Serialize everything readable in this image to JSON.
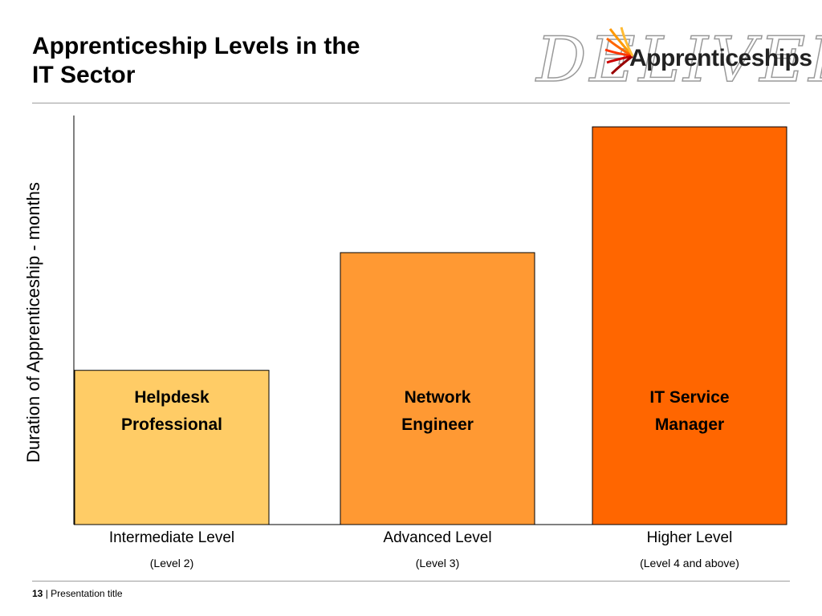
{
  "title": {
    "line1": "Apprenticeship Levels in the",
    "line2": "IT Sector"
  },
  "logo": {
    "ghost_text": "DELIVER",
    "word": "Apprenticeships"
  },
  "footer": {
    "page_number": "13",
    "separator": "|",
    "text": "Presentation title"
  },
  "chart_data": {
    "type": "bar",
    "ylabel": "Duration of Apprenticeship - months",
    "xlabel": "",
    "grid": false,
    "legend": "none",
    "ylim": [
      0,
      100
    ],
    "categories": [
      "Intermediate Level",
      "Advanced Level",
      "Higher Level"
    ],
    "sublabels": [
      "(Level 2)",
      "(Level 3)",
      "(Level 4 and above)"
    ],
    "bar_labels": [
      [
        "Helpdesk",
        "Professional"
      ],
      [
        "Network",
        "Engineer"
      ],
      [
        "IT Service",
        "Manager"
      ]
    ],
    "values": [
      38,
      67,
      98
    ],
    "colors": [
      "#FFCC66",
      "#FF9933",
      "#FF6600"
    ]
  }
}
